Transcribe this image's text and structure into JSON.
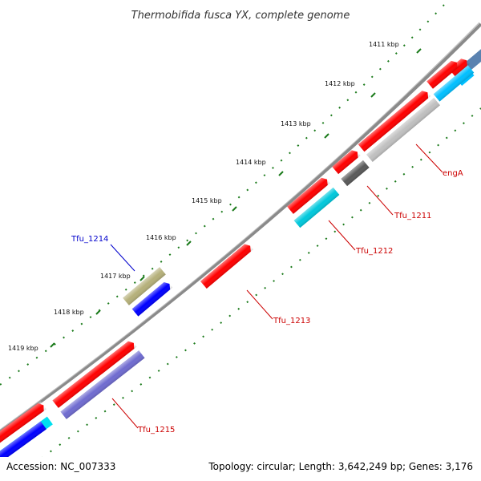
{
  "title": "Thermobifida fusca YX, complete genome",
  "footer": {
    "accession": "Accession: NC_007333",
    "summary": "Topology: circular; Length: 3,642,249 bp; Genes: 3,176"
  },
  "kbp_labels": [
    "1411 kbp",
    "1412 kbp",
    "1413 kbp",
    "1414 kbp",
    "1415 kbp",
    "1416 kbp",
    "1417 kbp",
    "1418 kbp",
    "1419 kbp"
  ],
  "gene_labels": {
    "engA": "engA",
    "tfu_1211": "Tfu_1211",
    "tfu_1212": "Tfu_1212",
    "tfu_1213": "Tfu_1213",
    "tfu_1214": "Tfu_1214",
    "tfu_1215": "Tfu_1215"
  },
  "colors": {
    "forward_cds": "#ff0000",
    "backbone": "#808080",
    "tick": "#1a7a1a",
    "label_red": "#cc0000",
    "label_blue": "#0000cc",
    "cyan": "#00c8dc",
    "light_blue": "#00bfff",
    "gray_light": "#c0c0c0",
    "gray_dark": "#595959",
    "olive": "#b5b07a",
    "blue": "#0000ff",
    "purple": "#6f6bd0",
    "steel_blue": "#5a82b0"
  }
}
